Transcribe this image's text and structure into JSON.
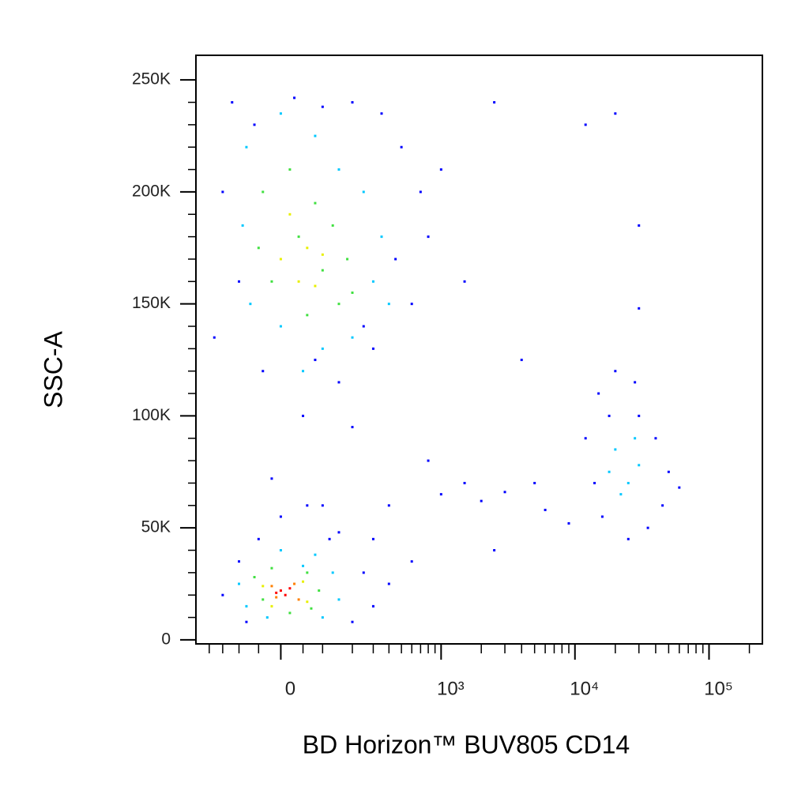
{
  "chart_data": {
    "type": "scatter",
    "x_label": "BD Horizon™ BUV805 CD14",
    "y_label": "SSC-A",
    "xscale": "biexponential",
    "xlim": [
      -260,
      250000
    ],
    "ylim": [
      -1800,
      261000
    ],
    "xticks": [
      {
        "value": 0,
        "label": "0"
      },
      {
        "value": 1000,
        "label": "10³"
      },
      {
        "value": 10000,
        "label": "10⁴"
      },
      {
        "value": 100000,
        "label": "10⁵"
      }
    ],
    "x_minor_ticks": [
      -200,
      -150,
      -100,
      -50,
      50,
      100,
      200,
      300,
      400,
      500,
      600,
      700,
      800,
      900,
      2000,
      3000,
      4000,
      5000,
      6000,
      7000,
      8000,
      9000,
      20000,
      30000,
      40000,
      50000,
      60000,
      70000,
      80000,
      90000,
      200000
    ],
    "yticks": [
      {
        "value": 0,
        "label": "0"
      },
      {
        "value": 50000,
        "label": "50K"
      },
      {
        "value": 100000,
        "label": "100K"
      },
      {
        "value": 150000,
        "label": "150K"
      },
      {
        "value": 200000,
        "label": "200K"
      },
      {
        "value": 250000,
        "label": "250K"
      }
    ],
    "y_minor_ticks": [
      10000,
      20000,
      30000,
      40000,
      60000,
      70000,
      80000,
      90000,
      110000,
      120000,
      130000,
      140000,
      160000,
      170000,
      180000,
      190000,
      210000,
      220000,
      230000,
      240000
    ],
    "series": [
      {
        "color": "#0000ff",
        "x": [
          -120,
          -60,
          30,
          100,
          200,
          350,
          500,
          700,
          -150,
          -100,
          -180,
          450,
          600,
          300,
          150,
          -40,
          80,
          250,
          800,
          1000,
          2500,
          12000,
          20000,
          30000,
          1500,
          30000,
          4000,
          50,
          200,
          800,
          -20,
          100,
          2000,
          3000,
          5000,
          6000,
          9000,
          1500,
          400,
          300,
          600,
          1000,
          2500,
          12000,
          15000,
          20000,
          30000,
          40000,
          50000,
          45000,
          35000,
          25000,
          16000,
          14000,
          18000,
          28000,
          60000,
          -150,
          -100,
          -80,
          0,
          60,
          150,
          250,
          300,
          200,
          120,
          -50,
          400
        ],
        "y": [
          240000,
          230000,
          242000,
          238000,
          240000,
          235000,
          220000,
          200000,
          200000,
          160000,
          135000,
          170000,
          150000,
          130000,
          115000,
          120000,
          125000,
          140000,
          180000,
          210000,
          240000,
          230000,
          235000,
          185000,
          160000,
          148000,
          125000,
          100000,
          95000,
          80000,
          72000,
          60000,
          62000,
          66000,
          70000,
          58000,
          52000,
          70000,
          60000,
          45000,
          35000,
          65000,
          40000,
          90000,
          110000,
          120000,
          100000,
          90000,
          75000,
          60000,
          50000,
          45000,
          55000,
          70000,
          100000,
          115000,
          68000,
          20000,
          35000,
          8000,
          55000,
          60000,
          48000,
          30000,
          15000,
          8000,
          45000,
          45000,
          25000
        ]
      },
      {
        "color": "#00c8ff",
        "x": [
          -80,
          0,
          80,
          150,
          250,
          350,
          400,
          200,
          100,
          0,
          -70,
          -90,
          300,
          50,
          20000,
          25000,
          22000,
          30000,
          18000,
          28000,
          -100,
          -80,
          0,
          80,
          130,
          150,
          100,
          -30,
          50
        ],
        "y": [
          220000,
          235000,
          225000,
          210000,
          200000,
          180000,
          150000,
          135000,
          130000,
          140000,
          150000,
          185000,
          160000,
          120000,
          85000,
          70000,
          65000,
          78000,
          75000,
          90000,
          25000,
          15000,
          40000,
          38000,
          30000,
          18000,
          10000,
          10000,
          33000
        ]
      },
      {
        "color": "#40e040",
        "x": [
          -40,
          20,
          80,
          130,
          180,
          200,
          150,
          60,
          -20,
          -50,
          100,
          40,
          -60,
          -40,
          60,
          90,
          70,
          -20,
          20
        ],
        "y": [
          200000,
          210000,
          195000,
          185000,
          170000,
          155000,
          150000,
          145000,
          160000,
          175000,
          165000,
          180000,
          28000,
          18000,
          30000,
          22000,
          14000,
          32000,
          12000
        ]
      },
      {
        "color": "#e8f000",
        "x": [
          20,
          60,
          100,
          40,
          80,
          0,
          -40,
          50,
          60,
          -20
        ],
        "y": [
          190000,
          175000,
          172000,
          160000,
          158000,
          170000,
          24000,
          26000,
          17000,
          15000
        ]
      },
      {
        "color": "#ff8000",
        "x": [
          -20,
          30,
          40,
          -10
        ],
        "y": [
          24000,
          25000,
          18000,
          19000
        ]
      },
      {
        "color": "#ff0000",
        "x": [
          0,
          10,
          20,
          -10
        ],
        "y": [
          22000,
          20000,
          23000,
          21000
        ]
      }
    ]
  }
}
